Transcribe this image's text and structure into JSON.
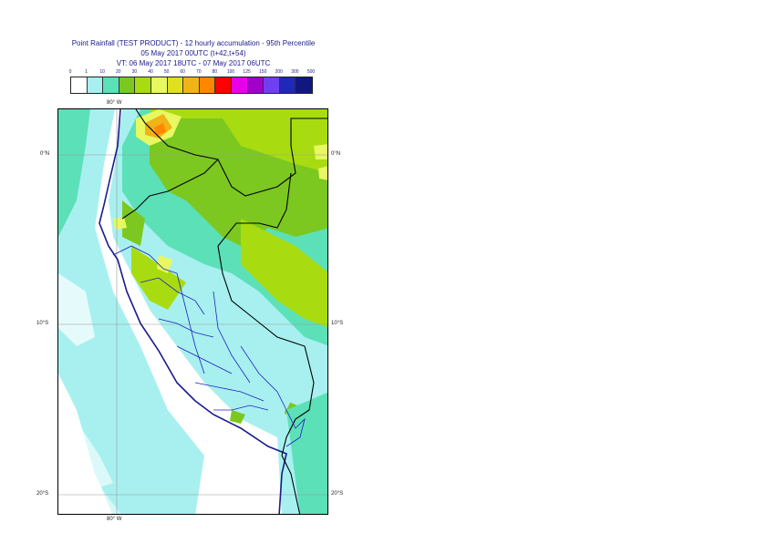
{
  "title": {
    "line1": "Point Rainfall (TEST PRODUCT) - 12 hourly accumulation - 95th Percentile",
    "line2": "05 May 2017 00UTC (t+42,t+54)",
    "line3": "VT: 06 May 2017 18UTC - 07 May 2017 06UTC"
  },
  "legend": {
    "labels": [
      "0",
      "1",
      "10",
      "20",
      "30",
      "40",
      "50",
      "60",
      "70",
      "80",
      "100",
      "125",
      "150",
      "200",
      "300",
      "500"
    ],
    "colors": [
      "#ffffff",
      "#a8f0f0",
      "#5ce0b8",
      "#7cc820",
      "#a8dc10",
      "#e8f860",
      "#e0e020",
      "#f0b418",
      "#ff8800",
      "#ff0000",
      "#e800e8",
      "#a000c8",
      "#7040f0",
      "#2028b8",
      "#101880"
    ]
  },
  "axes": {
    "lon_top": "80° W",
    "lon_bottom": "80° W",
    "lat_left": [
      "0°N",
      "10°S",
      "20°S"
    ],
    "lat_right": [
      "0°N",
      "10°S",
      "20°S"
    ]
  },
  "map": {
    "region": "Peru",
    "gridlines": true,
    "colors": {
      "light": "#a8f0f0",
      "medium": "#5ce0b8",
      "green": "#7cc820",
      "lime": "#a8dc10",
      "yellow": "#e8f860",
      "orange": "#f0b418",
      "coast": "#1a1a8c",
      "border": "#000000",
      "admin": "#2020c0"
    }
  }
}
